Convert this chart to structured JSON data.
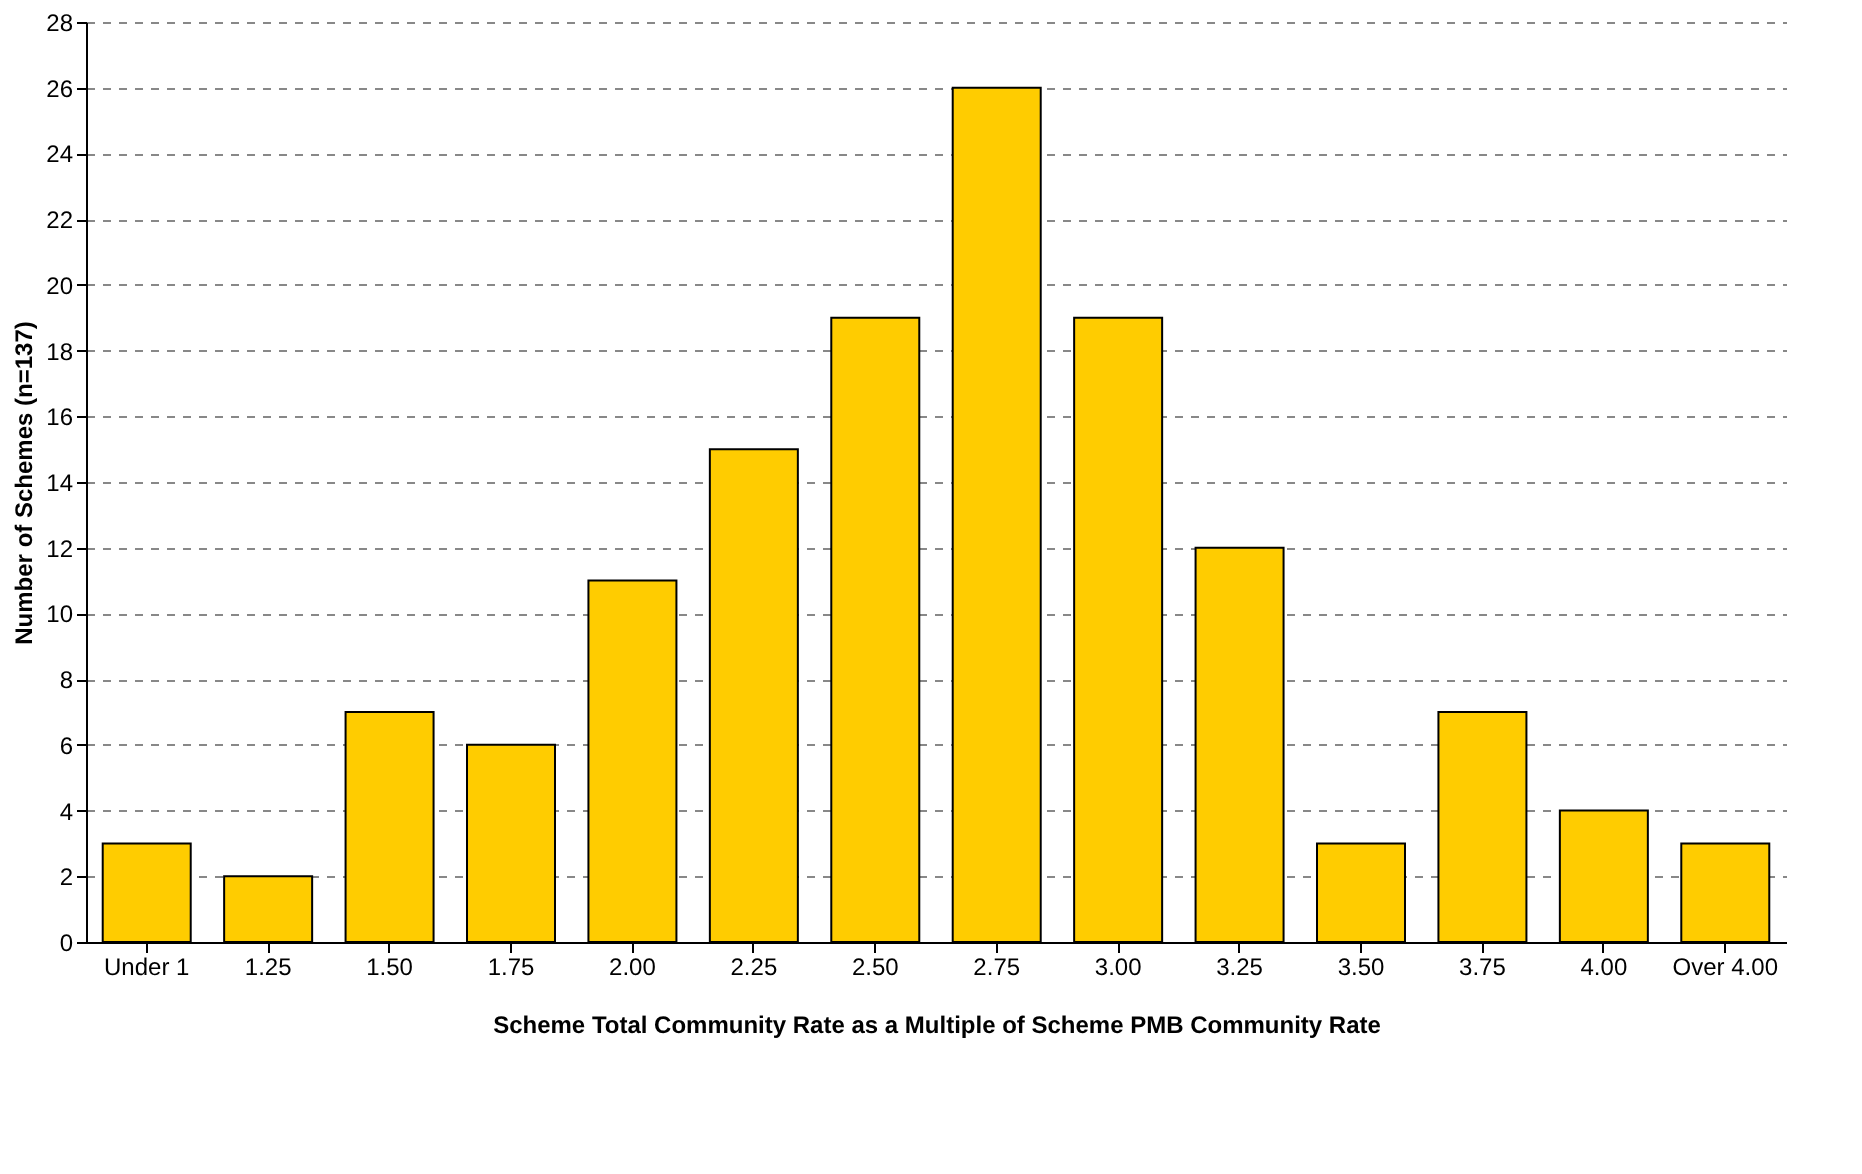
{
  "chart_data": {
    "type": "bar",
    "xlabel": "Scheme Total Community Rate as a Multiple of Scheme PMB Community Rate",
    "ylabel": "Number of Schemes (n=137)",
    "categories": [
      "Under 1",
      "1.25",
      "1.50",
      "1.75",
      "2.00",
      "2.25",
      "2.50",
      "2.75",
      "3.00",
      "3.25",
      "3.50",
      "3.75",
      "4.00",
      "Over 4.00"
    ],
    "values": [
      3,
      2,
      7,
      6,
      11,
      15,
      19,
      26,
      19,
      12,
      3,
      7,
      4,
      3
    ],
    "color": "#ffcc00",
    "ylim": [
      0,
      28
    ],
    "yticks": [
      0,
      2,
      4,
      6,
      8,
      10,
      12,
      14,
      16,
      18,
      20,
      22,
      24,
      26,
      28
    ],
    "grid": "y"
  }
}
